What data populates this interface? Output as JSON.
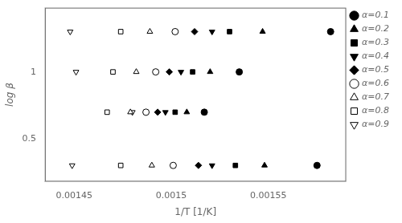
{
  "chart_data": {
    "type": "scatter",
    "xlabel": "1/T [1/K]",
    "ylabel": "log β",
    "xlim": [
      0.001435,
      0.00159
    ],
    "ylim": [
      0.18,
      1.48
    ],
    "xticks": [
      0.00145,
      0.0015,
      0.00155
    ],
    "yticks": [
      0.5,
      1.0
    ],
    "grid": false,
    "legend": "right",
    "series": [
      {
        "name": "α=0.1",
        "marker": "circle",
        "color": "black",
        "x": [
          0.001582,
          0.001535,
          0.001517,
          0.001575
        ],
        "values": [
          1.301,
          1.0,
          0.699,
          0.301
        ]
      },
      {
        "name": "α=0.2",
        "marker": "triangle",
        "color": "black",
        "x": [
          0.001547,
          0.00152,
          0.001508,
          0.001548
        ],
        "values": [
          1.301,
          1.0,
          0.699,
          0.301
        ]
      },
      {
        "name": "α=0.3",
        "marker": "square",
        "color": "black",
        "x": [
          0.00153,
          0.001511,
          0.001502,
          0.001533
        ],
        "values": [
          1.301,
          1.0,
          0.699,
          0.301
        ]
      },
      {
        "name": "α=0.4",
        "marker": "triangle-down",
        "color": "black",
        "x": [
          0.001521,
          0.001505,
          0.001497,
          0.001521
        ],
        "values": [
          1.301,
          1.0,
          0.699,
          0.301
        ]
      },
      {
        "name": "α=0.5",
        "marker": "diamond",
        "color": "black",
        "x": [
          0.001512,
          0.001499,
          0.001493,
          0.001514
        ],
        "values": [
          1.301,
          1.0,
          0.699,
          0.301
        ]
      },
      {
        "name": "α=0.6",
        "marker": "circle",
        "color": "white",
        "x": [
          0.001502,
          0.001492,
          0.001487,
          0.001501
        ],
        "values": [
          1.301,
          1.0,
          0.699,
          0.301
        ]
      },
      {
        "name": "α=0.7",
        "marker": "triangle",
        "color": "white",
        "x": [
          0.001489,
          0.001482,
          0.001479,
          0.00149
        ],
        "values": [
          1.301,
          1.0,
          0.699,
          0.301
        ]
      },
      {
        "name": "α=0.8",
        "marker": "square",
        "color": "white",
        "x": [
          0.001474,
          0.00147,
          0.001467,
          0.001474
        ],
        "values": [
          1.301,
          1.0,
          0.699,
          0.301
        ]
      },
      {
        "name": "α=0.9",
        "marker": "triangle-down",
        "color": "white",
        "x": [
          0.001448,
          0.001451,
          0.00148,
          0.001449
        ],
        "values": [
          1.301,
          1.0,
          0.699,
          0.301
        ]
      }
    ]
  }
}
